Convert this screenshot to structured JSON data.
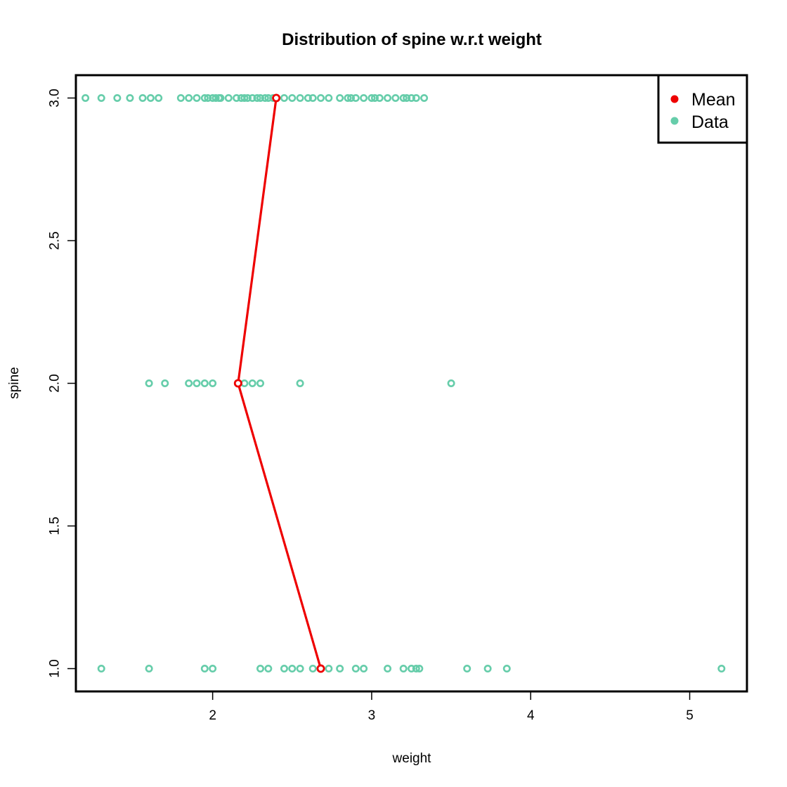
{
  "chart_data": {
    "type": "scatter",
    "title": "Distribution of spine w.r.t weight",
    "xlabel": "weight",
    "ylabel": "spine",
    "xlim": [
      1.14,
      5.36
    ],
    "ylim": [
      0.92,
      3.08
    ],
    "x_ticks": [
      2,
      3,
      4,
      5
    ],
    "y_ticks": [
      1.0,
      1.5,
      2.0,
      2.5,
      3.0
    ],
    "y_tick_labels": [
      "1.0",
      "1.5",
      "2.0",
      "2.5",
      "3.0"
    ],
    "grid": false,
    "legend": {
      "position": "top-right",
      "entries": [
        {
          "label": "Mean",
          "color": "#ee0000"
        },
        {
          "label": "Data",
          "color": "#66cdaa"
        }
      ]
    },
    "series": [
      {
        "name": "Data",
        "color": "#66cdaa",
        "marker": "open-circle",
        "points": [
          [
            1.2,
            3
          ],
          [
            1.3,
            3
          ],
          [
            1.4,
            3
          ],
          [
            1.48,
            3
          ],
          [
            1.56,
            3
          ],
          [
            1.61,
            3
          ],
          [
            1.66,
            3
          ],
          [
            1.8,
            3
          ],
          [
            1.85,
            3
          ],
          [
            1.9,
            3
          ],
          [
            1.95,
            3
          ],
          [
            1.97,
            3
          ],
          [
            2.0,
            3
          ],
          [
            2.02,
            3
          ],
          [
            2.04,
            3
          ],
          [
            2.05,
            3
          ],
          [
            2.1,
            3
          ],
          [
            2.15,
            3
          ],
          [
            2.18,
            3
          ],
          [
            2.2,
            3
          ],
          [
            2.22,
            3
          ],
          [
            2.25,
            3
          ],
          [
            2.28,
            3
          ],
          [
            2.3,
            3
          ],
          [
            2.33,
            3
          ],
          [
            2.35,
            3
          ],
          [
            2.38,
            3
          ],
          [
            2.45,
            3
          ],
          [
            2.5,
            3
          ],
          [
            2.55,
            3
          ],
          [
            2.6,
            3
          ],
          [
            2.63,
            3
          ],
          [
            2.68,
            3
          ],
          [
            2.73,
            3
          ],
          [
            2.8,
            3
          ],
          [
            2.85,
            3
          ],
          [
            2.87,
            3
          ],
          [
            2.9,
            3
          ],
          [
            2.95,
            3
          ],
          [
            3.0,
            3
          ],
          [
            3.02,
            3
          ],
          [
            3.05,
            3
          ],
          [
            3.1,
            3
          ],
          [
            3.15,
            3
          ],
          [
            3.2,
            3
          ],
          [
            3.22,
            3
          ],
          [
            3.25,
            3
          ],
          [
            3.28,
            3
          ],
          [
            3.33,
            3
          ],
          [
            1.6,
            2
          ],
          [
            1.7,
            2
          ],
          [
            1.85,
            2
          ],
          [
            1.9,
            2
          ],
          [
            1.95,
            2
          ],
          [
            2.0,
            2
          ],
          [
            2.2,
            2
          ],
          [
            2.25,
            2
          ],
          [
            2.3,
            2
          ],
          [
            2.55,
            2
          ],
          [
            3.5,
            2
          ],
          [
            1.3,
            1
          ],
          [
            1.6,
            1
          ],
          [
            1.95,
            1
          ],
          [
            2.0,
            1
          ],
          [
            2.3,
            1
          ],
          [
            2.35,
            1
          ],
          [
            2.45,
            1
          ],
          [
            2.5,
            1
          ],
          [
            2.55,
            1
          ],
          [
            2.63,
            1
          ],
          [
            2.73,
            1
          ],
          [
            2.8,
            1
          ],
          [
            2.9,
            1
          ],
          [
            2.95,
            1
          ],
          [
            3.1,
            1
          ],
          [
            3.2,
            1
          ],
          [
            3.25,
            1
          ],
          [
            3.28,
            1
          ],
          [
            3.3,
            1
          ],
          [
            3.6,
            1
          ],
          [
            3.73,
            1
          ],
          [
            3.85,
            1
          ],
          [
            5.2,
            1
          ]
        ]
      },
      {
        "name": "Mean",
        "color": "#ee0000",
        "marker": "open-circle-with-line",
        "points": [
          [
            2.4,
            3
          ],
          [
            2.16,
            2
          ],
          [
            2.68,
            1
          ]
        ]
      }
    ]
  }
}
